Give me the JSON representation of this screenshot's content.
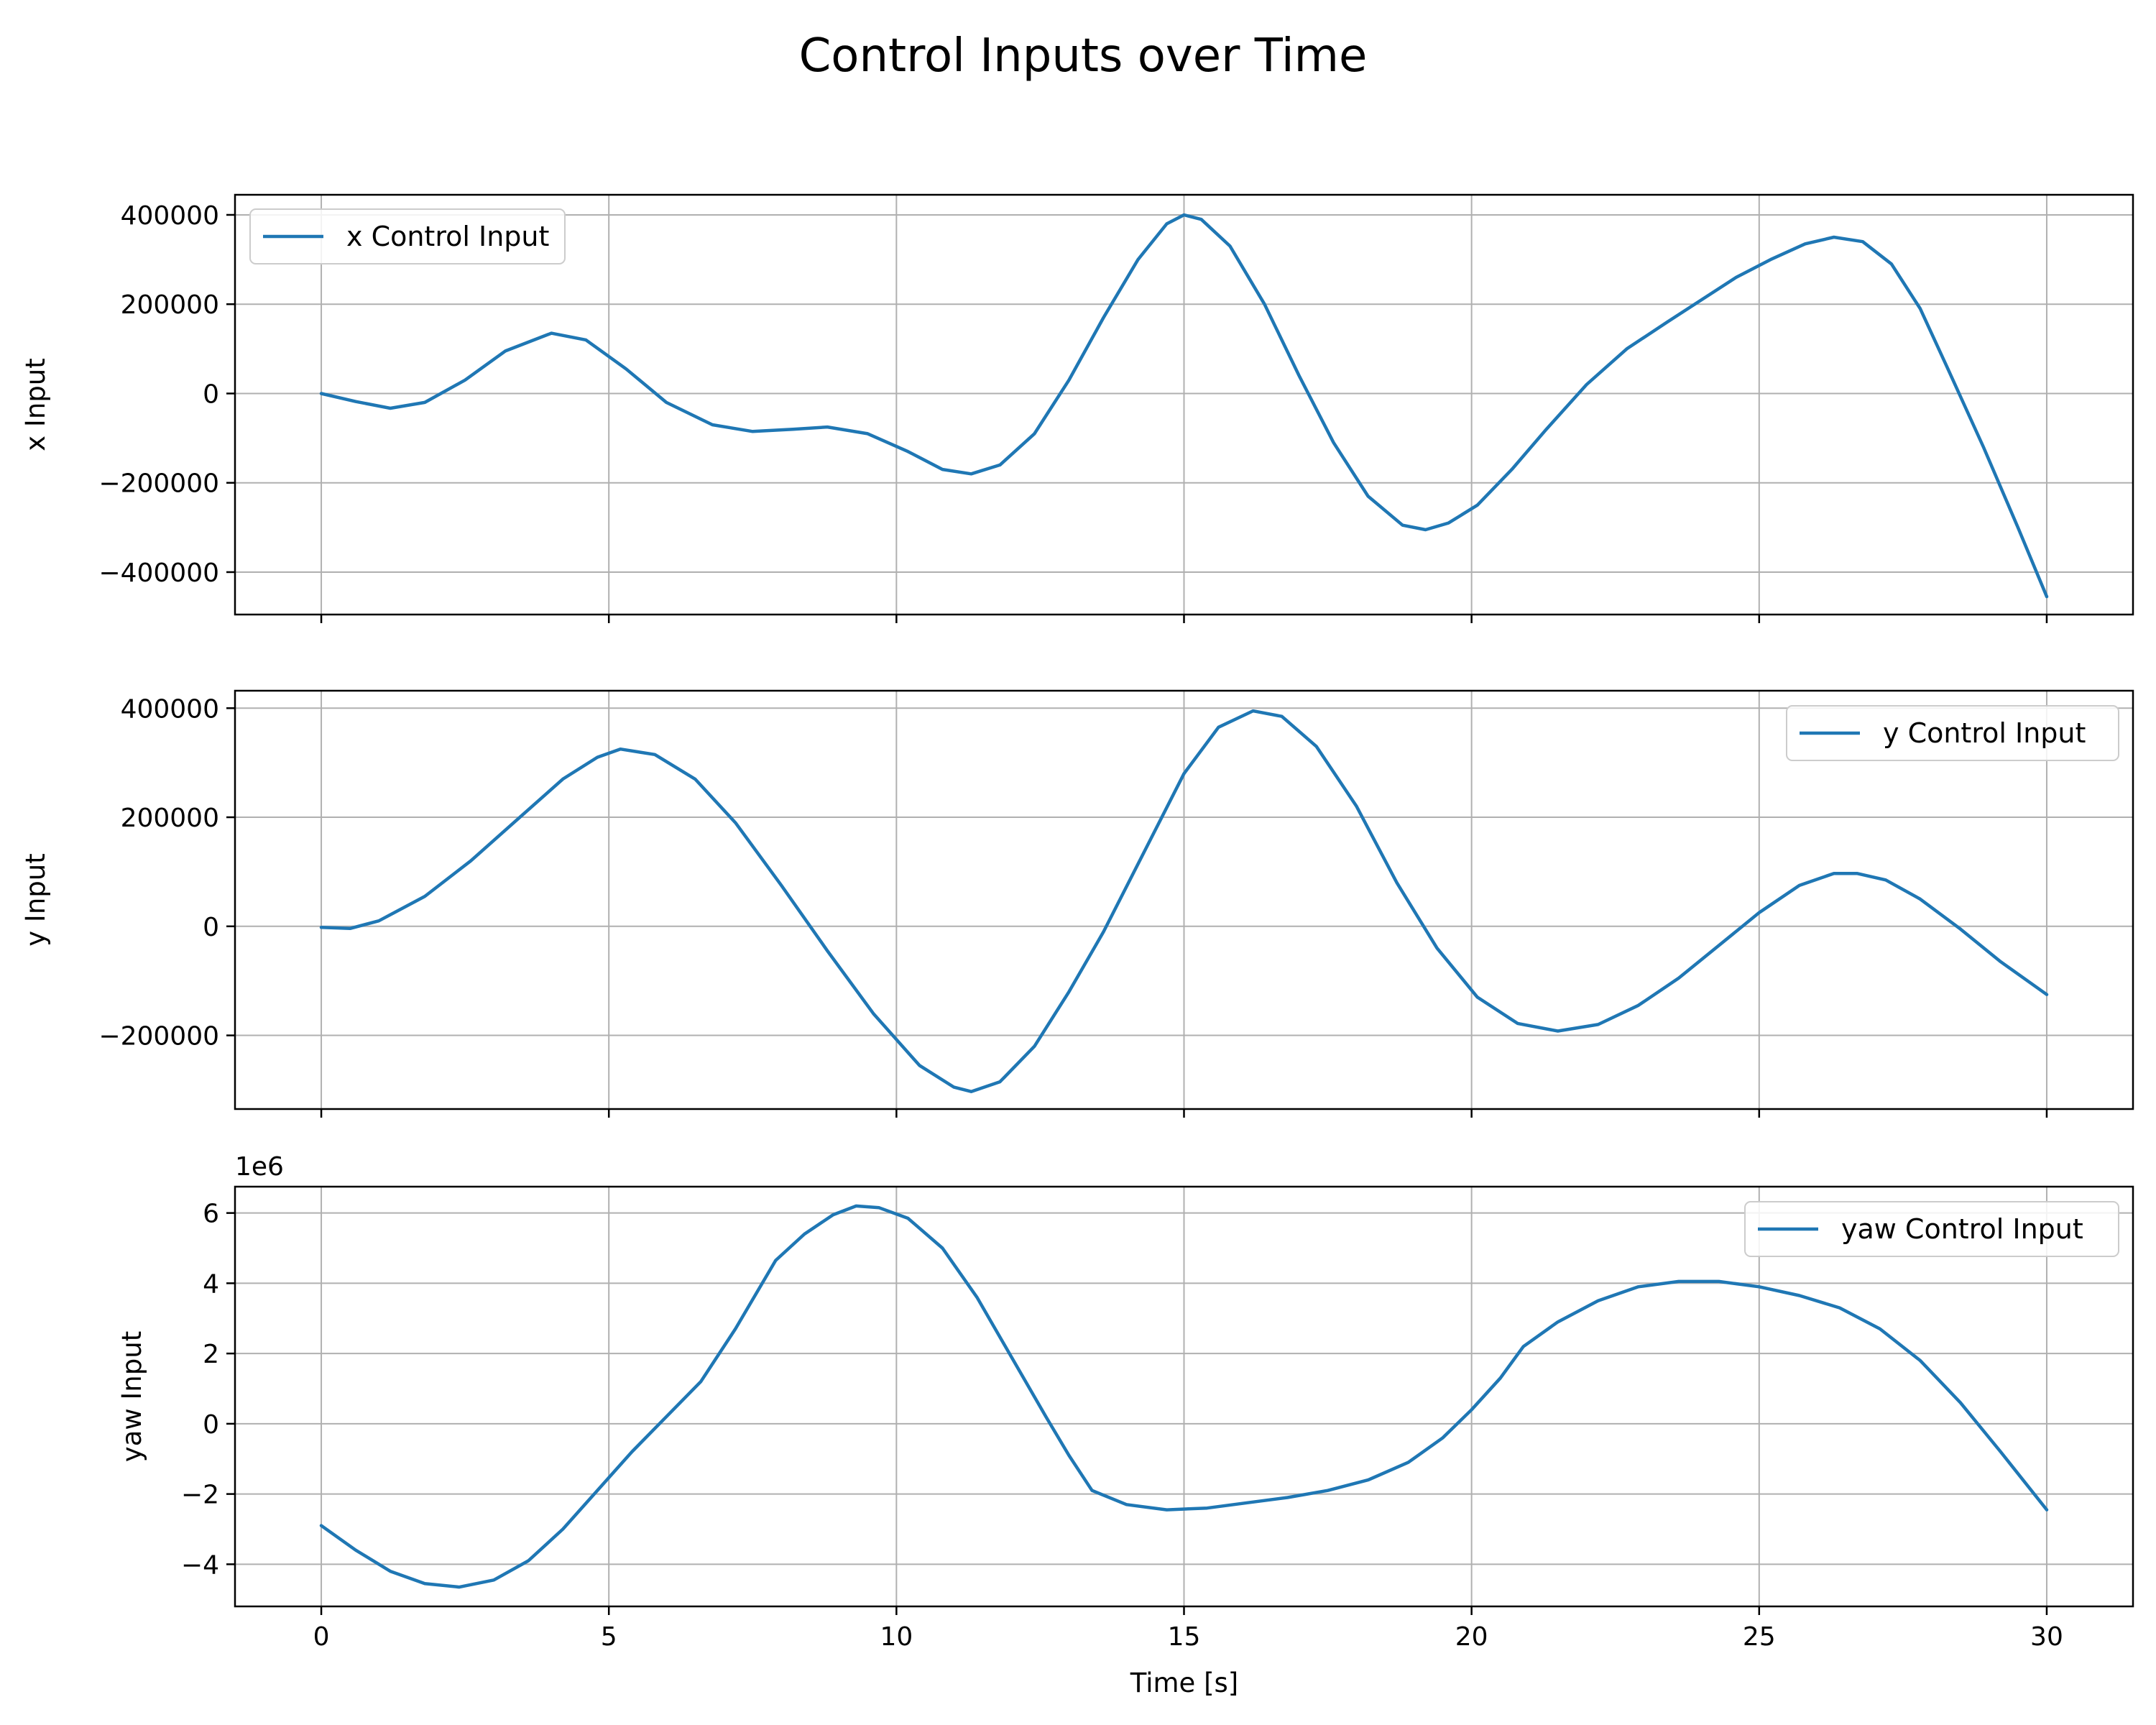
{
  "title": "Control Inputs over Time",
  "xlabel": "Time [s]",
  "line_color": "#1f77b4",
  "grid_color": "#b0b0b0",
  "chart_data": [
    {
      "type": "line",
      "ylabel": "x Input",
      "legend": "x Control Input",
      "legend_loc": "upper left",
      "xlim": [
        -1.5,
        31.5
      ],
      "ylim": [
        -495000,
        445000
      ],
      "grid": true,
      "xticks": [
        0,
        5,
        10,
        15,
        20,
        25,
        30
      ],
      "yticks": [
        400000,
        200000,
        0,
        -200000,
        -400000
      ],
      "ytick_labels": [
        "400000",
        "200000",
        "0",
        "−200000",
        "−400000"
      ],
      "show_xtick_labels": false,
      "offset_text": "",
      "series": [
        {
          "name": "x Control Input",
          "x": [
            0,
            0.6,
            1.2,
            1.8,
            2.5,
            3.2,
            4.0,
            4.6,
            5.3,
            6.0,
            6.8,
            7.5,
            8.2,
            8.8,
            9.5,
            10.2,
            10.8,
            11.3,
            11.8,
            12.4,
            13.0,
            13.6,
            14.2,
            14.7,
            15.0,
            15.3,
            15.8,
            16.4,
            17.0,
            17.6,
            18.2,
            18.8,
            19.2,
            19.6,
            20.1,
            20.7,
            21.3,
            22.0,
            22.7,
            23.4,
            24.0,
            24.6,
            25.2,
            25.8,
            26.3,
            26.8,
            27.3,
            27.8,
            28.3,
            28.9,
            29.5,
            30.0
          ],
          "y": [
            0,
            -18000,
            -33000,
            -20000,
            30000,
            95000,
            135000,
            120000,
            55000,
            -20000,
            -70000,
            -85000,
            -80000,
            -75000,
            -90000,
            -130000,
            -170000,
            -180000,
            -160000,
            -90000,
            30000,
            170000,
            300000,
            380000,
            400000,
            390000,
            330000,
            200000,
            40000,
            -110000,
            -230000,
            -295000,
            -305000,
            -290000,
            -250000,
            -170000,
            -80000,
            20000,
            100000,
            160000,
            210000,
            260000,
            300000,
            335000,
            350000,
            340000,
            290000,
            190000,
            50000,
            -120000,
            -300000,
            -455000
          ]
        }
      ]
    },
    {
      "type": "line",
      "ylabel": "y Input",
      "legend": "y Control Input",
      "legend_loc": "upper right",
      "xlim": [
        -1.5,
        31.5
      ],
      "ylim": [
        -335000,
        432000
      ],
      "grid": true,
      "xticks": [
        0,
        5,
        10,
        15,
        20,
        25,
        30
      ],
      "yticks": [
        400000,
        200000,
        0,
        -200000
      ],
      "ytick_labels": [
        "400000",
        "200000",
        "0",
        "−200000"
      ],
      "show_xtick_labels": false,
      "offset_text": "",
      "series": [
        {
          "name": "y Control Input",
          "x": [
            0,
            0.5,
            1.0,
            1.8,
            2.6,
            3.4,
            4.2,
            4.8,
            5.2,
            5.8,
            6.5,
            7.2,
            8.0,
            8.8,
            9.6,
            10.4,
            11.0,
            11.3,
            11.8,
            12.4,
            13.0,
            13.6,
            14.3,
            15.0,
            15.6,
            16.2,
            16.7,
            17.3,
            18.0,
            18.7,
            19.4,
            20.1,
            20.8,
            21.5,
            22.2,
            22.9,
            23.6,
            24.3,
            25.0,
            25.7,
            26.3,
            26.7,
            27.2,
            27.8,
            28.5,
            29.2,
            30.0
          ],
          "y": [
            -2000,
            -4000,
            10000,
            55000,
            120000,
            195000,
            270000,
            310000,
            325000,
            315000,
            270000,
            190000,
            75000,
            -45000,
            -160000,
            -255000,
            -295000,
            -303000,
            -285000,
            -220000,
            -120000,
            -10000,
            135000,
            280000,
            365000,
            395000,
            385000,
            330000,
            220000,
            80000,
            -40000,
            -130000,
            -178000,
            -192000,
            -180000,
            -145000,
            -95000,
            -35000,
            25000,
            75000,
            97000,
            97000,
            85000,
            50000,
            -5000,
            -65000,
            -125000
          ]
        }
      ]
    },
    {
      "type": "line",
      "ylabel": "yaw Input",
      "legend": "yaw Control Input",
      "legend_loc": "upper right",
      "xlim": [
        -1.5,
        31.5
      ],
      "ylim": [
        -5.2,
        6.75
      ],
      "grid": true,
      "xticks": [
        0,
        5,
        10,
        15,
        20,
        25,
        30
      ],
      "xtick_labels": [
        "0",
        "5",
        "10",
        "15",
        "20",
        "25",
        "30"
      ],
      "yticks": [
        6,
        4,
        2,
        0,
        -2,
        -4
      ],
      "ytick_labels": [
        "6",
        "4",
        "2",
        "0",
        "−2",
        "−4"
      ],
      "show_xtick_labels": true,
      "offset_text": "1e6",
      "series": [
        {
          "name": "yaw Control Input",
          "x": [
            0,
            0.6,
            1.2,
            1.8,
            2.4,
            3.0,
            3.6,
            4.2,
            4.8,
            5.4,
            6.0,
            6.6,
            7.2,
            7.9,
            8.4,
            8.9,
            9.3,
            9.7,
            10.2,
            10.8,
            11.4,
            12.0,
            12.6,
            13.0,
            13.4,
            14.0,
            14.7,
            15.4,
            16.1,
            16.8,
            17.5,
            18.2,
            18.9,
            19.5,
            20.0,
            20.5,
            20.9,
            21.5,
            22.2,
            22.9,
            23.6,
            24.3,
            25.0,
            25.7,
            26.4,
            27.1,
            27.8,
            28.5,
            29.2,
            30.0
          ],
          "y": [
            -2.9,
            -3.6,
            -4.2,
            -4.55,
            -4.65,
            -4.45,
            -3.9,
            -3.0,
            -1.9,
            -0.8,
            0.2,
            1.2,
            2.7,
            4.65,
            5.4,
            5.95,
            6.2,
            6.15,
            5.85,
            5.0,
            3.6,
            1.9,
            0.2,
            -0.9,
            -1.9,
            -2.3,
            -2.45,
            -2.4,
            -2.25,
            -2.1,
            -1.9,
            -1.6,
            -1.1,
            -0.4,
            0.4,
            1.3,
            2.2,
            2.9,
            3.5,
            3.9,
            4.05,
            4.05,
            3.9,
            3.65,
            3.3,
            2.7,
            1.8,
            0.6,
            -0.8,
            -2.45
          ]
        }
      ]
    }
  ]
}
